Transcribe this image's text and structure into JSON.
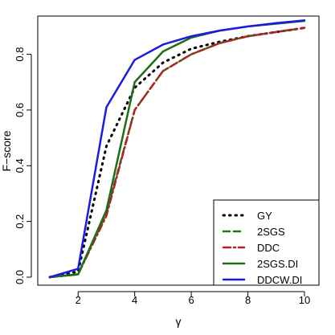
{
  "chart_data": {
    "type": "line",
    "xlabel": "γ",
    "ylabel": "F−score",
    "xlim": [
      1,
      10
    ],
    "ylim": [
      0,
      0.92
    ],
    "x_ticks": [
      2,
      4,
      6,
      8,
      10
    ],
    "y_ticks": [
      0.0,
      0.2,
      0.4,
      0.6,
      0.8
    ],
    "x_tick_labels": [
      "2",
      "4",
      "6",
      "8",
      "10"
    ],
    "y_tick_labels": [
      "0.0",
      "0.2",
      "0.4",
      "0.6",
      "0.8"
    ],
    "grid": false,
    "legend_position": "bottom-right",
    "x": [
      1,
      2,
      3,
      4,
      5,
      6,
      7,
      8,
      9,
      10
    ],
    "series": [
      {
        "name": "GY",
        "values": [
          0.0,
          0.02,
          0.47,
          0.68,
          0.77,
          0.82,
          0.845,
          0.865,
          0.88,
          0.895
        ],
        "color": "#000000",
        "dash": "dotted"
      },
      {
        "name": "2SGS",
        "values": [
          0.0,
          0.01,
          0.23,
          0.6,
          0.74,
          0.8,
          0.84,
          0.865,
          0.88,
          0.895
        ],
        "color": "#1a7a1a",
        "dash": "dashed"
      },
      {
        "name": "DDC",
        "values": [
          0.0,
          0.01,
          0.22,
          0.6,
          0.74,
          0.8,
          0.84,
          0.865,
          0.88,
          0.895
        ],
        "color": "#b22222",
        "dash": "dashdot"
      },
      {
        "name": "2SGS.DI",
        "values": [
          0.0,
          0.01,
          0.24,
          0.7,
          0.81,
          0.86,
          0.885,
          0.9,
          0.91,
          0.92
        ],
        "color": "#1a6e1a",
        "dash": "solid"
      },
      {
        "name": "DDCW.DI",
        "values": [
          0.0,
          0.03,
          0.61,
          0.78,
          0.835,
          0.865,
          0.885,
          0.9,
          0.912,
          0.922
        ],
        "color": "#1a1ae6",
        "dash": "solid"
      }
    ]
  }
}
